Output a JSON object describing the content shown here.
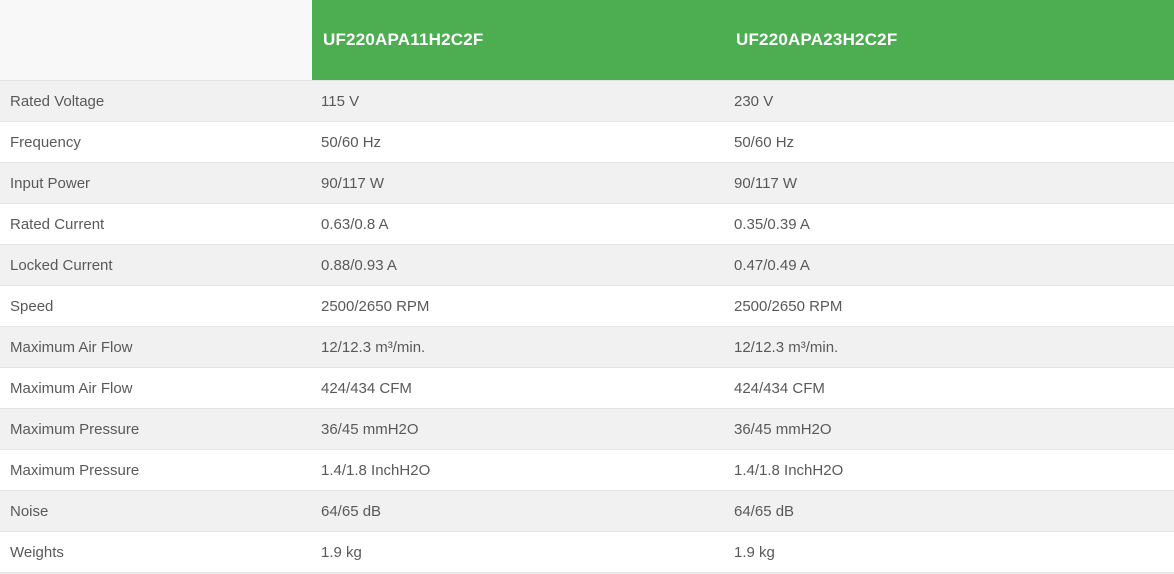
{
  "colors": {
    "header_bg": "#4cae51",
    "header_text": "#ffffff",
    "corner_bg": "#f8f8f8",
    "row_shaded": "#f1f1f1",
    "row_plain": "#ffffff",
    "border": "#e4e4e4",
    "cell_text": "#595959"
  },
  "table": {
    "corner_label": "",
    "columns": [
      {
        "label": "UF220APA11H2C2F"
      },
      {
        "label": "UF220APA23H2C2F"
      }
    ],
    "rows": [
      {
        "label": "Rated Voltage",
        "values": [
          "115 V",
          "230 V"
        ]
      },
      {
        "label": "Frequency",
        "values": [
          "50/60 Hz",
          "50/60 Hz"
        ]
      },
      {
        "label": "Input Power",
        "values": [
          "90/117 W",
          "90/117 W"
        ]
      },
      {
        "label": "Rated Current",
        "values": [
          "0.63/0.8 A",
          "0.35/0.39 A"
        ]
      },
      {
        "label": "Locked Current",
        "values": [
          "0.88/0.93 A",
          "0.47/0.49 A"
        ]
      },
      {
        "label": "Speed",
        "values": [
          "2500/2650 RPM",
          "2500/2650 RPM"
        ]
      },
      {
        "label": "Maximum Air Flow",
        "values": [
          "12/12.3 m³/min.",
          "12/12.3 m³/min."
        ]
      },
      {
        "label": "Maximum Air Flow",
        "values": [
          "424/434 CFM",
          "424/434 CFM"
        ]
      },
      {
        "label": "Maximum Pressure",
        "values": [
          "36/45 mmH2O",
          "36/45 mmH2O"
        ]
      },
      {
        "label": "Maximum Pressure",
        "values": [
          "1.4/1.8 InchH2O",
          "1.4/1.8 InchH2O"
        ]
      },
      {
        "label": "Noise",
        "values": [
          "64/65 dB",
          "64/65 dB"
        ]
      },
      {
        "label": "Weights",
        "values": [
          "1.9 kg",
          "1.9 kg"
        ]
      }
    ]
  }
}
